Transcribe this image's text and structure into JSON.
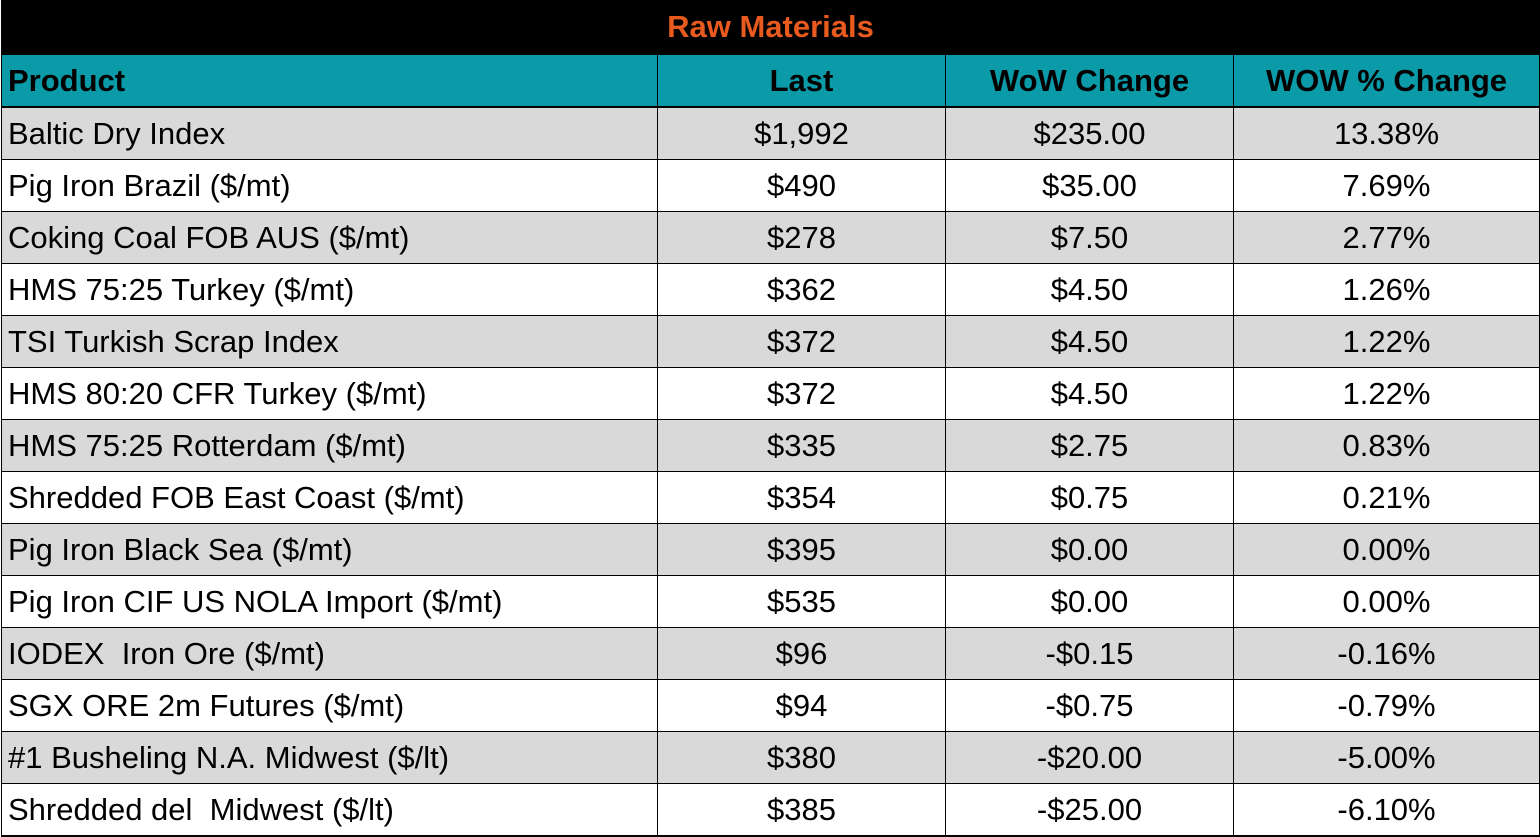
{
  "title": "Raw Materials",
  "colors": {
    "title_bg": "#000000",
    "title_text": "#e85a1e",
    "header_bg": "#0a9aa8",
    "row_alt": "#d9d9d9",
    "row": "#ffffff"
  },
  "columns": [
    "Product",
    "Last",
    "WoW Change",
    "WOW % Change"
  ],
  "rows": [
    {
      "product": "Baltic Dry Index",
      "last": "$1,992",
      "wow": "$235.00",
      "pct": "13.38%"
    },
    {
      "product": "Pig Iron Brazil ($/mt)",
      "last": "$490",
      "wow": "$35.00",
      "pct": "7.69%"
    },
    {
      "product": "Coking Coal FOB AUS ($/mt)",
      "last": "$278",
      "wow": "$7.50",
      "pct": "2.77%"
    },
    {
      "product": "HMS 75:25 Turkey ($/mt)",
      "last": "$362",
      "wow": "$4.50",
      "pct": "1.26%"
    },
    {
      "product": "TSI Turkish Scrap Index",
      "last": "$372",
      "wow": "$4.50",
      "pct": "1.22%"
    },
    {
      "product": "HMS 80:20 CFR Turkey ($/mt)",
      "last": "$372",
      "wow": "$4.50",
      "pct": "1.22%"
    },
    {
      "product": "HMS 75:25 Rotterdam ($/mt)",
      "last": "$335",
      "wow": "$2.75",
      "pct": "0.83%"
    },
    {
      "product": "Shredded FOB East Coast ($/mt)",
      "last": "$354",
      "wow": "$0.75",
      "pct": "0.21%"
    },
    {
      "product": "Pig Iron Black Sea ($/mt)",
      "last": "$395",
      "wow": "$0.00",
      "pct": "0.00%"
    },
    {
      "product": "Pig Iron CIF US NOLA Import ($/mt)",
      "last": "$535",
      "wow": "$0.00",
      "pct": "0.00%"
    },
    {
      "product": "IODEX  Iron Ore ($/mt)",
      "last": "$96",
      "wow": "-$0.15",
      "pct": "-0.16%"
    },
    {
      "product": "SGX ORE 2m Futures ($/mt)",
      "last": "$94",
      "wow": "-$0.75",
      "pct": "-0.79%"
    },
    {
      "product": "#1 Busheling N.A. Midwest ($/lt)",
      "last": "$380",
      "wow": "-$20.00",
      "pct": "-5.00%"
    },
    {
      "product": "Shredded del  Midwest ($/lt)",
      "last": "$385",
      "wow": "-$25.00",
      "pct": "-6.10%"
    }
  ]
}
